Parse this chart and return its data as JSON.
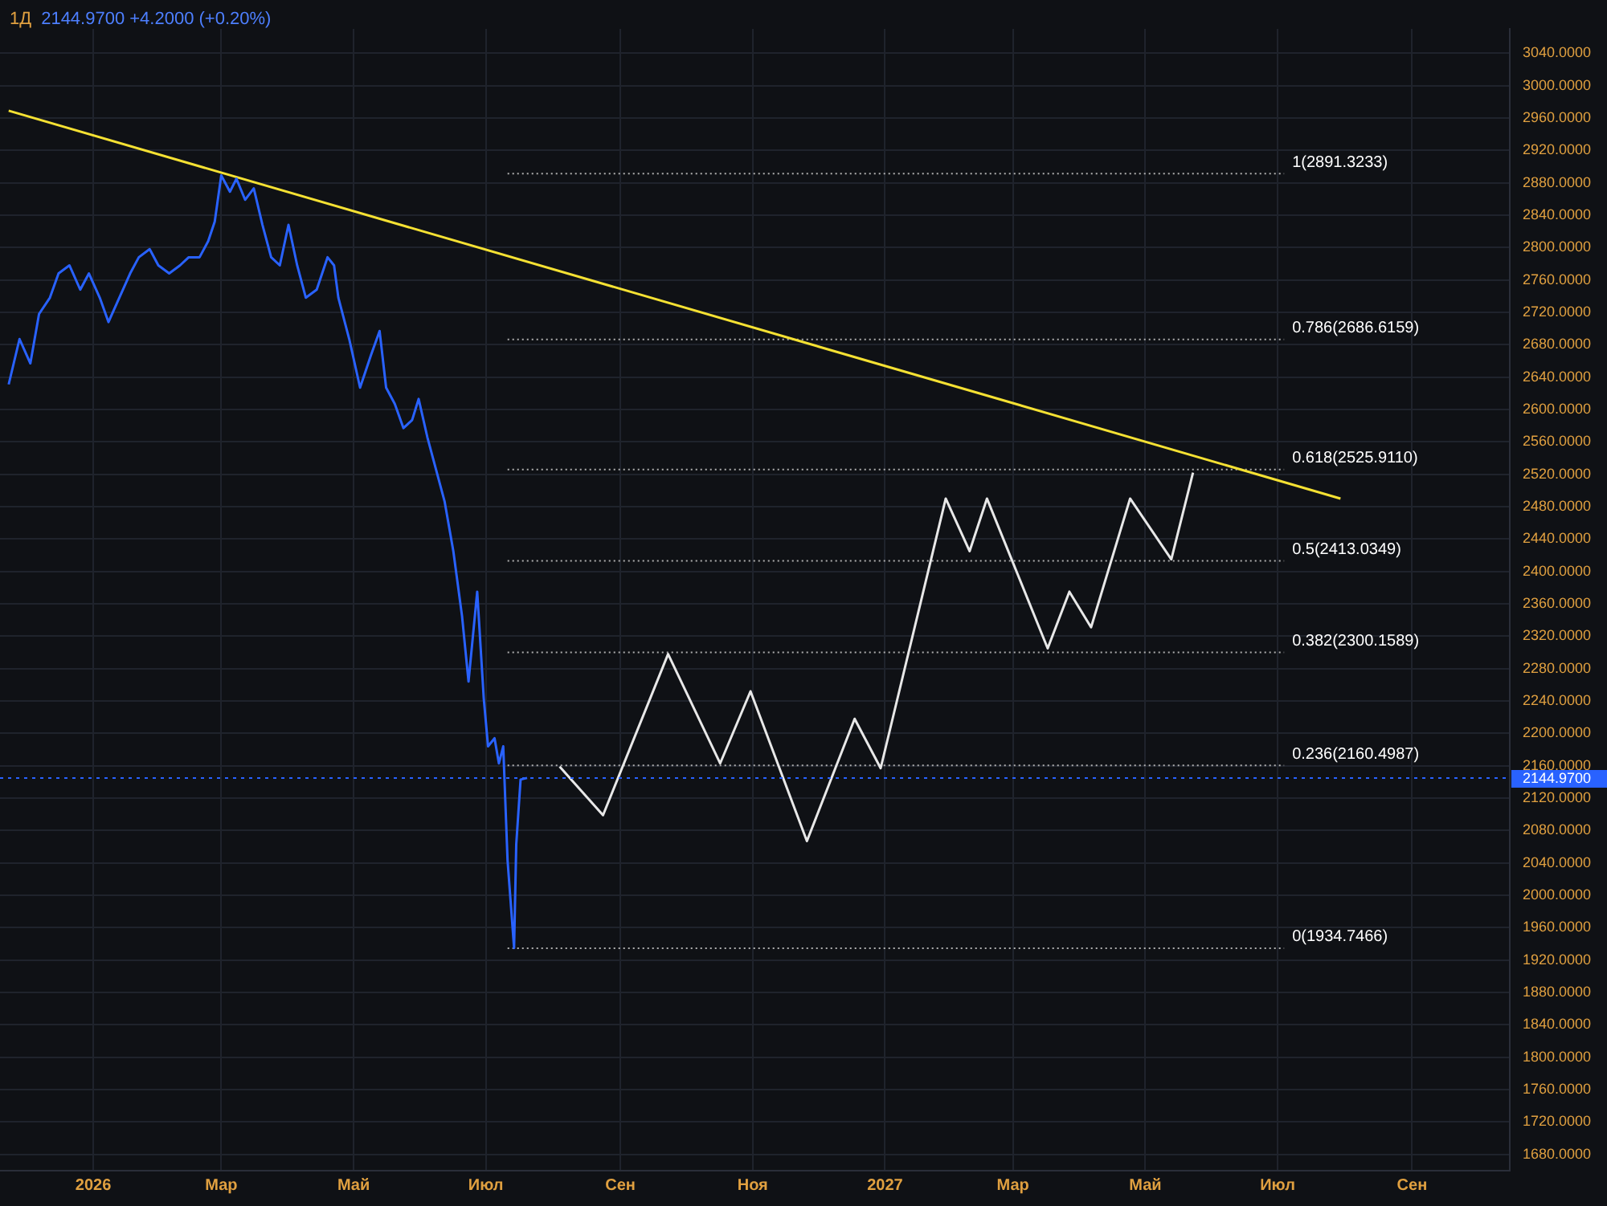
{
  "chart_data": {
    "type": "line",
    "title": "1Д",
    "subtitle": "2144.9700 +4.2000 (+0.20%)",
    "xlim": [
      "2025-11-19",
      "2027-10-16"
    ],
    "xticks": [
      {
        "value": "2026",
        "label": "2026"
      },
      {
        "value": "2026-03",
        "label": "Мар"
      },
      {
        "value": "2026-05",
        "label": "Май"
      },
      {
        "value": "2026-07",
        "label": "Июл"
      },
      {
        "value": "2026-09",
        "label": "Сен"
      },
      {
        "value": "2026-11",
        "label": "Ноя"
      },
      {
        "value": "2027",
        "label": "2027"
      },
      {
        "value": "2027-03",
        "label": "Мар"
      },
      {
        "value": "2027-05",
        "label": "Май"
      },
      {
        "value": "2027-07",
        "label": "Июл"
      },
      {
        "value": "2027-09",
        "label": "Сен"
      }
    ],
    "ylim": [
      1660,
      3070
    ],
    "yticks": [
      {
        "value": 1680,
        "label": "1680.0000"
      },
      {
        "value": 1720,
        "label": "1720.0000"
      },
      {
        "value": 1760,
        "label": "1760.0000"
      },
      {
        "value": 1800,
        "label": "1800.0000"
      },
      {
        "value": 1840,
        "label": "1840.0000"
      },
      {
        "value": 1880,
        "label": "1880.0000"
      },
      {
        "value": 1920,
        "label": "1920.0000"
      },
      {
        "value": 1960,
        "label": "1960.0000"
      },
      {
        "value": 2000,
        "label": "2000.0000"
      },
      {
        "value": 2040,
        "label": "2040.0000"
      },
      {
        "value": 2080,
        "label": "2080.0000"
      },
      {
        "value": 2120,
        "label": "2120.0000"
      },
      {
        "value": 2160,
        "label": "2160.0000"
      },
      {
        "value": 2200,
        "label": "2200.0000"
      },
      {
        "value": 2240,
        "label": "2240.0000"
      },
      {
        "value": 2280,
        "label": "2280.0000"
      },
      {
        "value": 2320,
        "label": "2320.0000"
      },
      {
        "value": 2360,
        "label": "2360.0000"
      },
      {
        "value": 2400,
        "label": "2400.0000"
      },
      {
        "value": 2440,
        "label": "2440.0000"
      },
      {
        "value": 2480,
        "label": "2480.0000"
      },
      {
        "value": 2520,
        "label": "2520.0000"
      },
      {
        "value": 2560,
        "label": "2560.0000"
      },
      {
        "value": 2600,
        "label": "2600.0000"
      },
      {
        "value": 2640,
        "label": "2640.0000"
      },
      {
        "value": 2680,
        "label": "2680.0000"
      },
      {
        "value": 2720,
        "label": "2720.0000"
      },
      {
        "value": 2760,
        "label": "2760.0000"
      },
      {
        "value": 2800,
        "label": "2800.0000"
      },
      {
        "value": 2840,
        "label": "2840.0000"
      },
      {
        "value": 2880,
        "label": "2880.0000"
      },
      {
        "value": 2920,
        "label": "2920.0000"
      },
      {
        "value": 2960,
        "label": "2960.0000"
      },
      {
        "value": 3000,
        "label": "3000.0000"
      },
      {
        "value": 3040,
        "label": "3040.0000"
      }
    ],
    "grid": true,
    "legend": false,
    "marker": "none",
    "series": [
      {
        "color": "#2962ff",
        "line_style": "solid",
        "x": [
          "2025-11-23",
          "2025-11-28",
          "2025-12-03",
          "2025-12-07",
          "2025-12-12",
          "2025-12-16",
          "2025-12-21",
          "2025-12-26",
          "2025-12-30",
          "2026-01-04",
          "2026-01-08",
          "2026-01-13",
          "2026-01-18",
          "2026-01-22",
          "2026-01-27",
          "2026-01-31",
          "2026-02-05",
          "2026-02-10",
          "2026-02-14",
          "2026-02-19",
          "2026-02-23",
          "2026-02-26",
          "2026-03-01",
          "2026-03-05",
          "2026-03-08",
          "2026-03-12",
          "2026-03-16",
          "2026-03-20",
          "2026-03-24",
          "2026-03-28",
          "2026-04-01",
          "2026-04-05",
          "2026-04-09",
          "2026-04-14",
          "2026-04-19",
          "2026-04-22",
          "2026-04-24",
          "2026-04-29",
          "2026-05-04",
          "2026-05-09",
          "2026-05-13",
          "2026-05-16",
          "2026-05-20",
          "2026-05-24",
          "2026-05-28",
          "2026-05-31",
          "2026-06-04",
          "2026-06-08",
          "2026-06-12",
          "2026-06-16",
          "2026-06-20",
          "2026-06-23",
          "2026-06-27",
          "2026-06-30",
          "2026-07-02",
          "2026-07-05",
          "2026-07-07",
          "2026-07-09",
          "2026-07-11",
          "2026-07-14",
          "2026-07-15",
          "2026-07-17",
          "2026-07-20"
        ],
        "values": [
          2631,
          2687,
          2657,
          2718,
          2738,
          2768,
          2778,
          2748,
          2768,
          2738,
          2708,
          2738,
          2768,
          2788,
          2798,
          2778,
          2768,
          2778,
          2788,
          2788,
          2808,
          2832,
          2889,
          2869,
          2885,
          2859,
          2873,
          2828,
          2788,
          2778,
          2828,
          2778,
          2738,
          2748,
          2788,
          2778,
          2738,
          2687,
          2627,
          2667,
          2697,
          2627,
          2607,
          2577,
          2587,
          2613,
          2566,
          2526,
          2486,
          2425,
          2345,
          2264,
          2375,
          2244,
          2184,
          2194,
          2163,
          2184,
          2043,
          1935,
          2063,
          2143,
          2145
        ]
      },
      {
        "color": "#e8e8e8",
        "line_style": "solid",
        "x": [
          "2026-08-04",
          "2026-08-24",
          "2026-09-23",
          "2026-10-17",
          "2026-10-31",
          "2026-11-26",
          "2026-12-18",
          "2026-12-30",
          "2027-01-29",
          "2027-02-09",
          "2027-02-17",
          "2027-03-17",
          "2027-03-27",
          "2027-04-06",
          "2027-04-24",
          "2027-05-13",
          "2027-05-23"
        ],
        "values": [
          2159,
          2099,
          2298,
          2163,
          2252,
          2067,
          2218,
          2157,
          2490,
          2425,
          2490,
          2305,
          2375,
          2331,
          2490,
          2415,
          2522
        ]
      },
      {
        "color": "#f5e133",
        "line_style": "solid",
        "x": [
          "2025-11-23",
          "2027-07-30"
        ],
        "values": [
          2969,
          2490
        ]
      },
      {
        "name": "1(2891.3233)",
        "color": "#b0b0b0",
        "line_style": "dotted",
        "x": [
          "2026-07-11",
          "2027-07-04"
        ],
        "values": [
          2891.3233,
          2891.3233
        ]
      },
      {
        "name": "0.786(2686.6159)",
        "color": "#b0b0b0",
        "line_style": "dotted",
        "x": [
          "2026-07-11",
          "2027-07-04"
        ],
        "values": [
          2686.6159,
          2686.6159
        ]
      },
      {
        "name": "0.618(2525.9110)",
        "color": "#b0b0b0",
        "line_style": "dotted",
        "x": [
          "2026-07-11",
          "2027-07-04"
        ],
        "values": [
          2525.911,
          2525.911
        ]
      },
      {
        "name": "0.5(2413.0349)",
        "color": "#b0b0b0",
        "line_style": "dotted",
        "x": [
          "2026-07-11",
          "2027-07-04"
        ],
        "values": [
          2413.0349,
          2413.0349
        ]
      },
      {
        "name": "0.382(2300.1589)",
        "color": "#b0b0b0",
        "line_style": "dotted",
        "x": [
          "2026-07-11",
          "2027-07-04"
        ],
        "values": [
          2300.1589,
          2300.1589
        ]
      },
      {
        "name": "0.236(2160.4987)",
        "color": "#b0b0b0",
        "line_style": "dotted",
        "x": [
          "2026-07-11",
          "2027-07-04"
        ],
        "values": [
          2160.4987,
          2160.4987
        ]
      },
      {
        "name": "0(1934.7466)",
        "color": "#b0b0b0",
        "line_style": "dotted",
        "x": [
          "2026-07-11",
          "2027-07-04"
        ],
        "values": [
          1934.7466,
          1934.7466
        ]
      }
    ],
    "ref_lines": [
      {
        "axis": "y",
        "value": 2144.97,
        "label": "2144.9700",
        "color": "#2962ff",
        "line_style": "dotted"
      }
    ]
  }
}
